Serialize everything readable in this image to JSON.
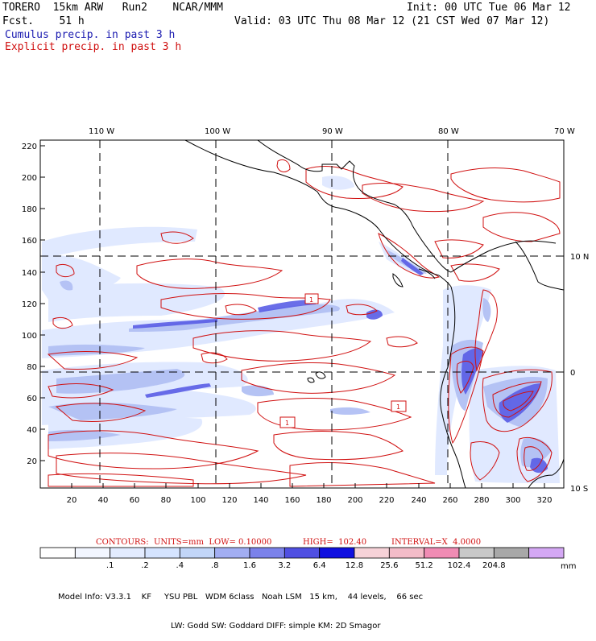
{
  "header": {
    "model_line": "TORERO  15km ARW   Run2    NCAR/MMM",
    "fcst_line": "Fcst.    51 h",
    "init_line": "Init: 00 UTC Tue 06 Mar 12",
    "valid_line": "Valid: 03 UTC Thu 08 Mar 12 (21 CST Wed 07 Mar 12)",
    "cumulus_label": "Cumulus precip. in past 3 h",
    "explicit_label": "Explicit precip. in past 3 h"
  },
  "colors": {
    "cumulus_text": "#1a1ab0",
    "explicit_text": "#d01010",
    "contour": "#d01010",
    "coast": "#000000"
  },
  "map": {
    "lon_labels": [
      "110 W",
      "100 W",
      "90 W",
      "80 W",
      "70 W"
    ],
    "lat_labels": [
      "10 N",
      "0",
      "10 S"
    ],
    "y_ticks": [
      "220",
      "200",
      "180",
      "160",
      "140",
      "120",
      "100",
      "80",
      "60",
      "40",
      "20"
    ],
    "x_ticks": [
      "20",
      "40",
      "60",
      "80",
      "100",
      "120",
      "140",
      "160",
      "180",
      "200",
      "220",
      "240",
      "260",
      "280",
      "300",
      "320"
    ],
    "max_labels": [
      "1",
      "1",
      "1"
    ]
  },
  "contour_info": {
    "units": "CONTOURS:  UNITS=mm  LOW= 0.10000",
    "high": "HIGH=  102.40",
    "interval": "INTERVAL=X  4.0000"
  },
  "colorbar": {
    "colors": [
      "#ffffff",
      "#f2f6ff",
      "#e3ecff",
      "#d5e4ff",
      "#c2d6f8",
      "#a2aef2",
      "#7b82ea",
      "#5050e2",
      "#1010e0",
      "#f6d2d8",
      "#f3bcc8",
      "#f08cb4",
      "#c8c8c8",
      "#a8a8a8",
      "#d4a8f4"
    ],
    "labels": [
      ".1",
      ".2",
      ".4",
      ".8",
      "1.6",
      "3.2",
      "6.4",
      "12.8",
      "25.6",
      "51.2",
      "102.4",
      "204.8"
    ],
    "unit": "mm"
  },
  "model_info": {
    "line1": "Model Info: V3.3.1    KF     YSU PBL   WDM 6class   Noah LSM   15 km,    44 levels,    66 sec",
    "line2": "LW: Godd SW: Goddard DIFF: simple KM: 2D Smagor"
  }
}
